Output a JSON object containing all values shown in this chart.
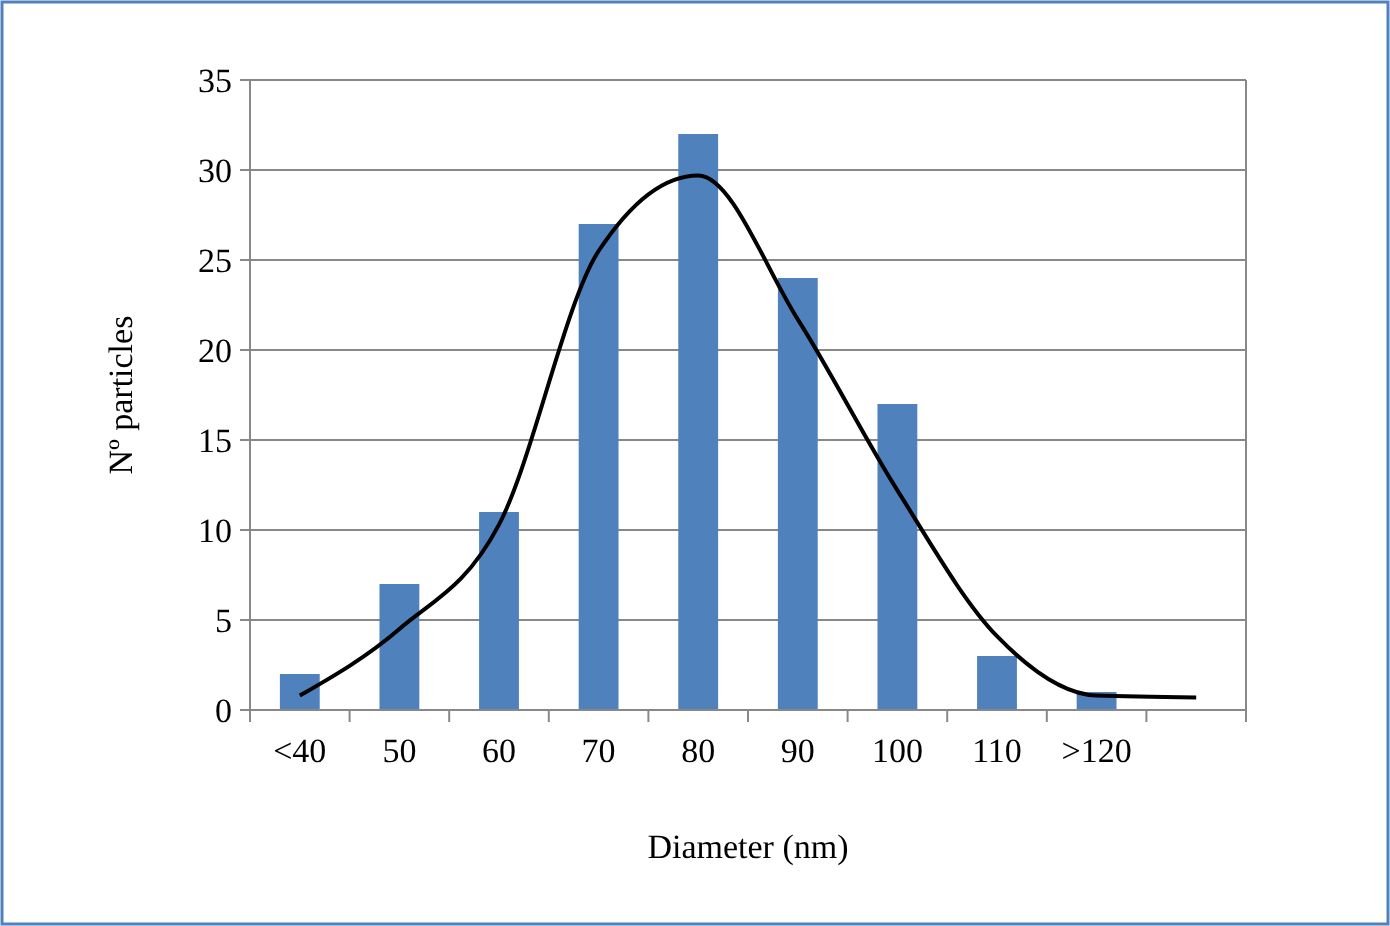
{
  "chart_data": {
    "type": "bar",
    "xlabel": "Diameter (nm)",
    "ylabel": "Nº particles",
    "categories": [
      "<40",
      "50",
      "60",
      "70",
      "80",
      "90",
      "100",
      "110",
      ">120",
      null
    ],
    "series": [
      {
        "color": "#4f81bd",
        "values": [
          2,
          7,
          11,
          27,
          32,
          24,
          17,
          3,
          1,
          null
        ]
      },
      {
        "type": "line",
        "color": "#000000",
        "values": [
          0.8,
          4.5,
          10.3,
          25.5,
          29.7,
          21.7,
          12.2,
          4.1,
          0.8,
          0.7
        ]
      }
    ],
    "ylim": [
      0,
      35
    ],
    "yticks": [
      0,
      5,
      10,
      15,
      20,
      25,
      30,
      35
    ],
    "grid": "y",
    "marker": "none"
  }
}
